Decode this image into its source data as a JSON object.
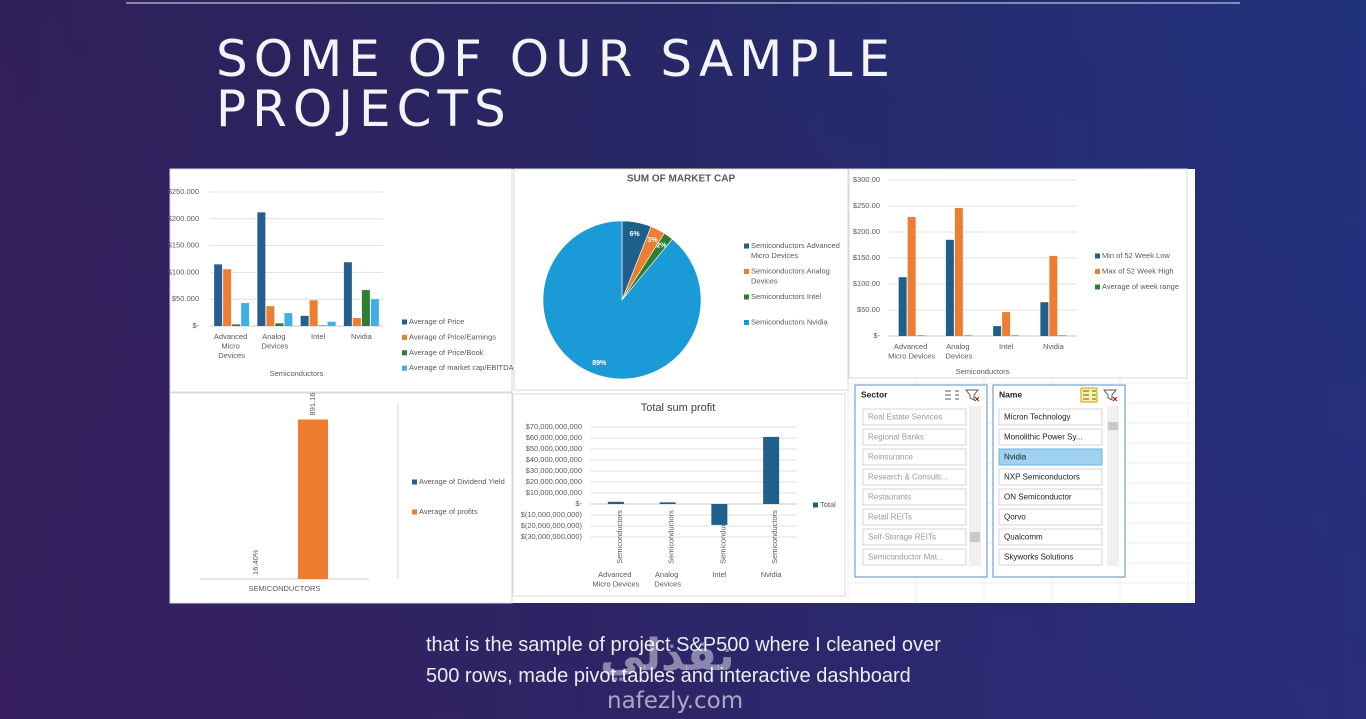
{
  "header": {
    "title": "SOME OF OUR SAMPLE PROJECTS"
  },
  "chart_data": [
    {
      "type": "bar",
      "xlabel": "Semiconductors",
      "categories": [
        "Advanced Micro Devices",
        "Analog Devices",
        "Intel",
        "Nvidia"
      ],
      "series": [
        {
          "name": "Average of Price",
          "color": "#255e91",
          "values": [
            115,
            212,
            19,
            119
          ]
        },
        {
          "name": "Average of Price/Earnings",
          "color": "#ed7d31",
          "values": [
            106,
            37,
            48,
            15
          ]
        },
        {
          "name": "Average of Price/Book",
          "color": "#2e7d32",
          "values": [
            3,
            5,
            1,
            67
          ]
        },
        {
          "name": "Average of market cap/EBITDA",
          "color": "#41aee6",
          "values": [
            43,
            24,
            8,
            50
          ]
        }
      ],
      "ylim": [
        0,
        250
      ],
      "yticks": [
        {
          "value": 0,
          "label": "$-"
        },
        {
          "value": 50,
          "label": "$50.000"
        },
        {
          "value": 100,
          "label": "$100.000"
        },
        {
          "value": 150,
          "label": "$150.000"
        },
        {
          "value": 200,
          "label": "$200.000"
        },
        {
          "value": 250,
          "label": "$250.000"
        }
      ],
      "grid": true
    },
    {
      "type": "pie",
      "title": "SUM OF MARKET CAP",
      "categories": [
        "Semiconductors Advanced Micro Devices",
        "Semiconductors Analog Devices",
        "Semiconductors Intel",
        "Semiconductors Nvidia"
      ],
      "values": [
        6,
        3,
        2,
        89
      ],
      "value_labels": [
        "6%",
        "3%",
        "2%",
        "89%"
      ],
      "colors": [
        "#1f5f8b",
        "#ed7d31",
        "#2e7d32",
        "#1a9ad6"
      ]
    },
    {
      "type": "bar",
      "xlabel": "Semiconductors",
      "categories": [
        "Advanced Micro Devices",
        "Analog Devices",
        "Intel",
        "Nvidia"
      ],
      "series": [
        {
          "name": "Min of 52 Week Low",
          "color": "#1f5f8b",
          "values": [
            113,
            185,
            19,
            65
          ]
        },
        {
          "name": "Max of 52 Week High",
          "color": "#ed7d31",
          "values": [
            229,
            246,
            46,
            154
          ]
        },
        {
          "name": "Average of week range",
          "color": "#2e7d32",
          "values": [
            1,
            1,
            1,
            1
          ]
        }
      ],
      "ylim": [
        0,
        300
      ],
      "yticks": [
        {
          "value": 0,
          "label": "$-"
        },
        {
          "value": 50,
          "label": "$50.00"
        },
        {
          "value": 100,
          "label": "$100.00"
        },
        {
          "value": 150,
          "label": "$150.00"
        },
        {
          "value": 200,
          "label": "$200.00"
        },
        {
          "value": 250,
          "label": "$250.00"
        },
        {
          "value": 300,
          "label": "$300.00"
        }
      ],
      "grid": true
    },
    {
      "type": "bar",
      "categories": [
        "SEMICONDUCTORS"
      ],
      "series": [
        {
          "name": "Average of Dividend Yield",
          "color": "#255e91",
          "values": [
            0.164
          ],
          "value_labels": [
            "16.40%"
          ]
        },
        {
          "name": "Average of profits",
          "color": "#ed7d31",
          "values": [
            891.16
          ],
          "value_labels": [
            "891.16"
          ]
        }
      ],
      "ylim": [
        0,
        1000
      ],
      "grid": false
    },
    {
      "type": "bar",
      "title": "Total sum profit",
      "categories": [
        "Advanced Micro Devices",
        "Analog Devices",
        "Intel",
        "Nvidia"
      ],
      "category_groups": [
        "Semiconductors",
        "Semiconductors",
        "Semiconductors",
        "Semiconductors"
      ],
      "series": [
        {
          "name": "Total",
          "color": "#1f5f8b",
          "values": [
            2000000000,
            1500000000,
            -19000000000,
            61000000000
          ]
        }
      ],
      "ylim": [
        -30000000000,
        70000000000
      ],
      "yticks": [
        {
          "value": -30000000000,
          "label": "$(30,000,000,000)"
        },
        {
          "value": -20000000000,
          "label": "$(20,000,000,000)"
        },
        {
          "value": -10000000000,
          "label": "$(10,000,000,000)"
        },
        {
          "value": 0,
          "label": "$-"
        },
        {
          "value": 10000000000,
          "label": "$10,000,000,000"
        },
        {
          "value": 20000000000,
          "label": "$20,000,000,000"
        },
        {
          "value": 30000000000,
          "label": "$30,000,000,000"
        },
        {
          "value": 40000000000,
          "label": "$40,000,000,000"
        },
        {
          "value": 50000000000,
          "label": "$50,000,000,000"
        },
        {
          "value": 60000000000,
          "label": "$60,000,000,000"
        },
        {
          "value": 70000000000,
          "label": "$70,000,000,000"
        }
      ],
      "grid": true
    }
  ],
  "slicers": [
    {
      "title": "Sector",
      "items": [
        "Real Estate Services",
        "Regional Banks",
        "Reinsurance",
        "Research & Consulti...",
        "Restaurants",
        "Retail REITs",
        "Self-Storage REITs",
        "Semiconductor Mat..."
      ]
    },
    {
      "title": "Name",
      "items": [
        "Micron Technology",
        "Monolithic Power Sy...",
        "Nvidia",
        "NXP Semiconductors",
        "ON Semiconductor",
        "Qorvo",
        "Qualcomm",
        "Skyworks Solutions"
      ],
      "selected": 2
    }
  ],
  "caption": "that is the sample of project S&P500  where I cleaned over 500 rows, made pivot tables and interactive dashboard",
  "watermark": {
    "arabic": "نفذلي",
    "site": "nafezly.com"
  }
}
